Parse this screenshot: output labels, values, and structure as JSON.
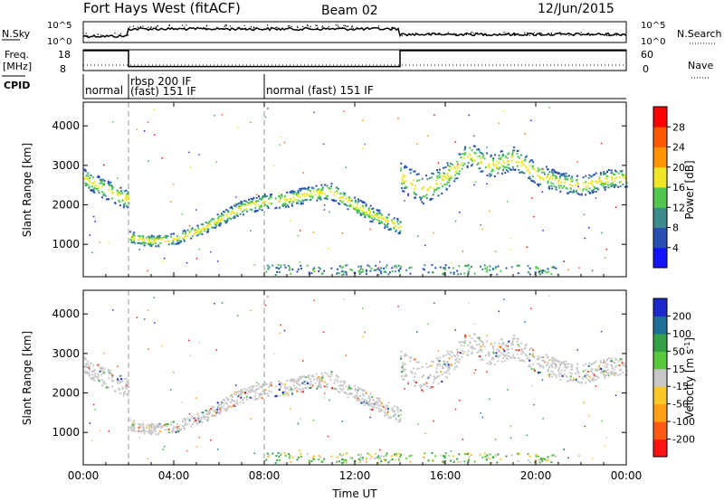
{
  "header": {
    "title": "Fort Hays West (fitACF)",
    "beam": "Beam 02",
    "date": "12/Jun/2015"
  },
  "noise_panel": {
    "left_label": "N.Sky",
    "left_ticks": [
      "10^5",
      "10^0"
    ],
    "right_ticks": [
      "10^5",
      "10^0"
    ],
    "right_label": "N.Search"
  },
  "freq_panel": {
    "left_label_1": "Freq.",
    "left_label_2": "[MHz]",
    "left_ticks": [
      "18",
      "8"
    ],
    "right_ticks": [
      "60",
      "0"
    ],
    "right_label": "Nave",
    "freq_segments": [
      {
        "start_hour": 0.0,
        "end_hour": 2.0,
        "freq_mhz": 18
      },
      {
        "start_hour": 2.0,
        "end_hour": 14.0,
        "freq_mhz": 10
      },
      {
        "start_hour": 14.0,
        "end_hour": 24.0,
        "freq_mhz": 18
      }
    ]
  },
  "cpid_panel": {
    "label": "CPID",
    "segments": [
      {
        "start_hour": 0.0,
        "lines": [
          "normal"
        ]
      },
      {
        "start_hour": 2.0,
        "lines": [
          "rbsp 200 IF",
          "(fast) 151 IF"
        ]
      },
      {
        "start_hour": 8.0,
        "lines": [
          "normal (fast) 151 IF"
        ]
      }
    ]
  },
  "time_axis": {
    "xlabel": "Time UT",
    "tick_labels": [
      "00:00",
      "04:00",
      "08:00",
      "12:00",
      "16:00",
      "20:00",
      "00:00"
    ],
    "xlim_hours": [
      0,
      24
    ]
  },
  "colorbars": {
    "power": {
      "label": "Power [dB]",
      "ticks": [
        "4",
        "8",
        "12",
        "16",
        "20",
        "24",
        "28"
      ],
      "colors": [
        "#1414ff",
        "#2850b4",
        "#3c8c8c",
        "#50c850",
        "#f0e628",
        "#ff9600",
        "#ff5a00",
        "#ff0000"
      ]
    },
    "velocity": {
      "label_prefix": "Velocity [m s",
      "label_sup": "-1",
      "label_suffix": "]",
      "ticks": [
        "200",
        "100",
        "50",
        "15",
        "-15",
        "-50",
        "-100",
        "-200"
      ],
      "colors": [
        "#1e28c8",
        "#1e6e96",
        "#32a046",
        "#5ac83c",
        "#c8c8c8",
        "#fac828",
        "#ffa014",
        "#ff5a14",
        "#ff1414"
      ]
    }
  },
  "chart_data": [
    {
      "type": "heatmap",
      "title": "Power",
      "ylabel": "Slant Range [km]",
      "ylim": [
        180,
        4600
      ],
      "yticks": [
        1000,
        2000,
        3000,
        4000
      ],
      "x_unit": "hours UT",
      "scatter_band": [
        [
          0.0,
          2700,
          250
        ],
        [
          0.5,
          2550,
          250
        ],
        [
          1.0,
          2400,
          250
        ],
        [
          1.5,
          2250,
          250
        ],
        [
          2.0,
          2150,
          250
        ],
        [
          2.0,
          1200,
          150
        ],
        [
          3.0,
          1100,
          150
        ],
        [
          4.0,
          1150,
          150
        ],
        [
          5.0,
          1350,
          150
        ],
        [
          6.0,
          1650,
          160
        ],
        [
          7.0,
          1950,
          180
        ],
        [
          8.0,
          2100,
          200
        ],
        [
          9.0,
          2150,
          200
        ],
        [
          10.0,
          2300,
          200
        ],
        [
          11.0,
          2350,
          220
        ],
        [
          12.0,
          2000,
          200
        ],
        [
          13.0,
          1700,
          200
        ],
        [
          14.0,
          1450,
          200
        ],
        [
          14.0,
          2750,
          350
        ],
        [
          15.0,
          2400,
          350
        ],
        [
          16.0,
          2700,
          350
        ],
        [
          17.0,
          3300,
          300
        ],
        [
          18.0,
          3000,
          300
        ],
        [
          19.0,
          3200,
          300
        ],
        [
          20.0,
          2800,
          300
        ],
        [
          21.0,
          2600,
          250
        ],
        [
          22.0,
          2500,
          250
        ],
        [
          23.0,
          2650,
          250
        ],
        [
          24.0,
          2700,
          250
        ]
      ],
      "colorbar": "power",
      "colorbar_range_db": [
        0,
        30
      ]
    },
    {
      "type": "heatmap",
      "title": "Velocity",
      "ylabel": "Slant Range [km]",
      "ylim": [
        180,
        4600
      ],
      "yticks": [
        1000,
        2000,
        3000,
        4000
      ],
      "x_unit": "hours UT",
      "colorbar": "velocity",
      "colorbar_range_ms": [
        -200,
        200
      ]
    }
  ]
}
